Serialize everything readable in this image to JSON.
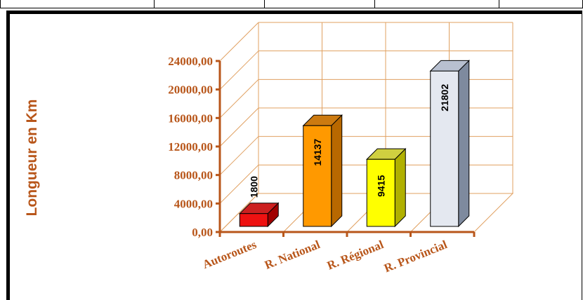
{
  "chart_data": {
    "type": "bar",
    "categories": [
      "Autoroutes",
      "R. National",
      "R. Régional",
      "R. Provincial"
    ],
    "values": [
      1800,
      14137,
      9415,
      21802
    ],
    "data_labels": [
      "1800",
      "14137",
      "9415",
      "21802"
    ],
    "title": "",
    "xlabel": "",
    "ylabel": "Longueur en Km",
    "yticks": [
      "0,00",
      "4000,00",
      "8000,00",
      "12000,00",
      "16000,00",
      "20000,00",
      "24000,00"
    ],
    "ylim": [
      0,
      24000
    ],
    "grid": true,
    "three_d": true,
    "colors": {
      "front": [
        "#ee1111",
        "#ff9900",
        "#ffff00",
        "#e4e8f0"
      ],
      "side": [
        "#a00000",
        "#b86800",
        "#b0b000",
        "#7e8a9e"
      ],
      "top": [
        "#cc2020",
        "#cc7a10",
        "#d0d040",
        "#b8c0d0"
      ],
      "axis": "#b8561a",
      "grid": "#e0a060",
      "text": "#b8561a"
    }
  }
}
